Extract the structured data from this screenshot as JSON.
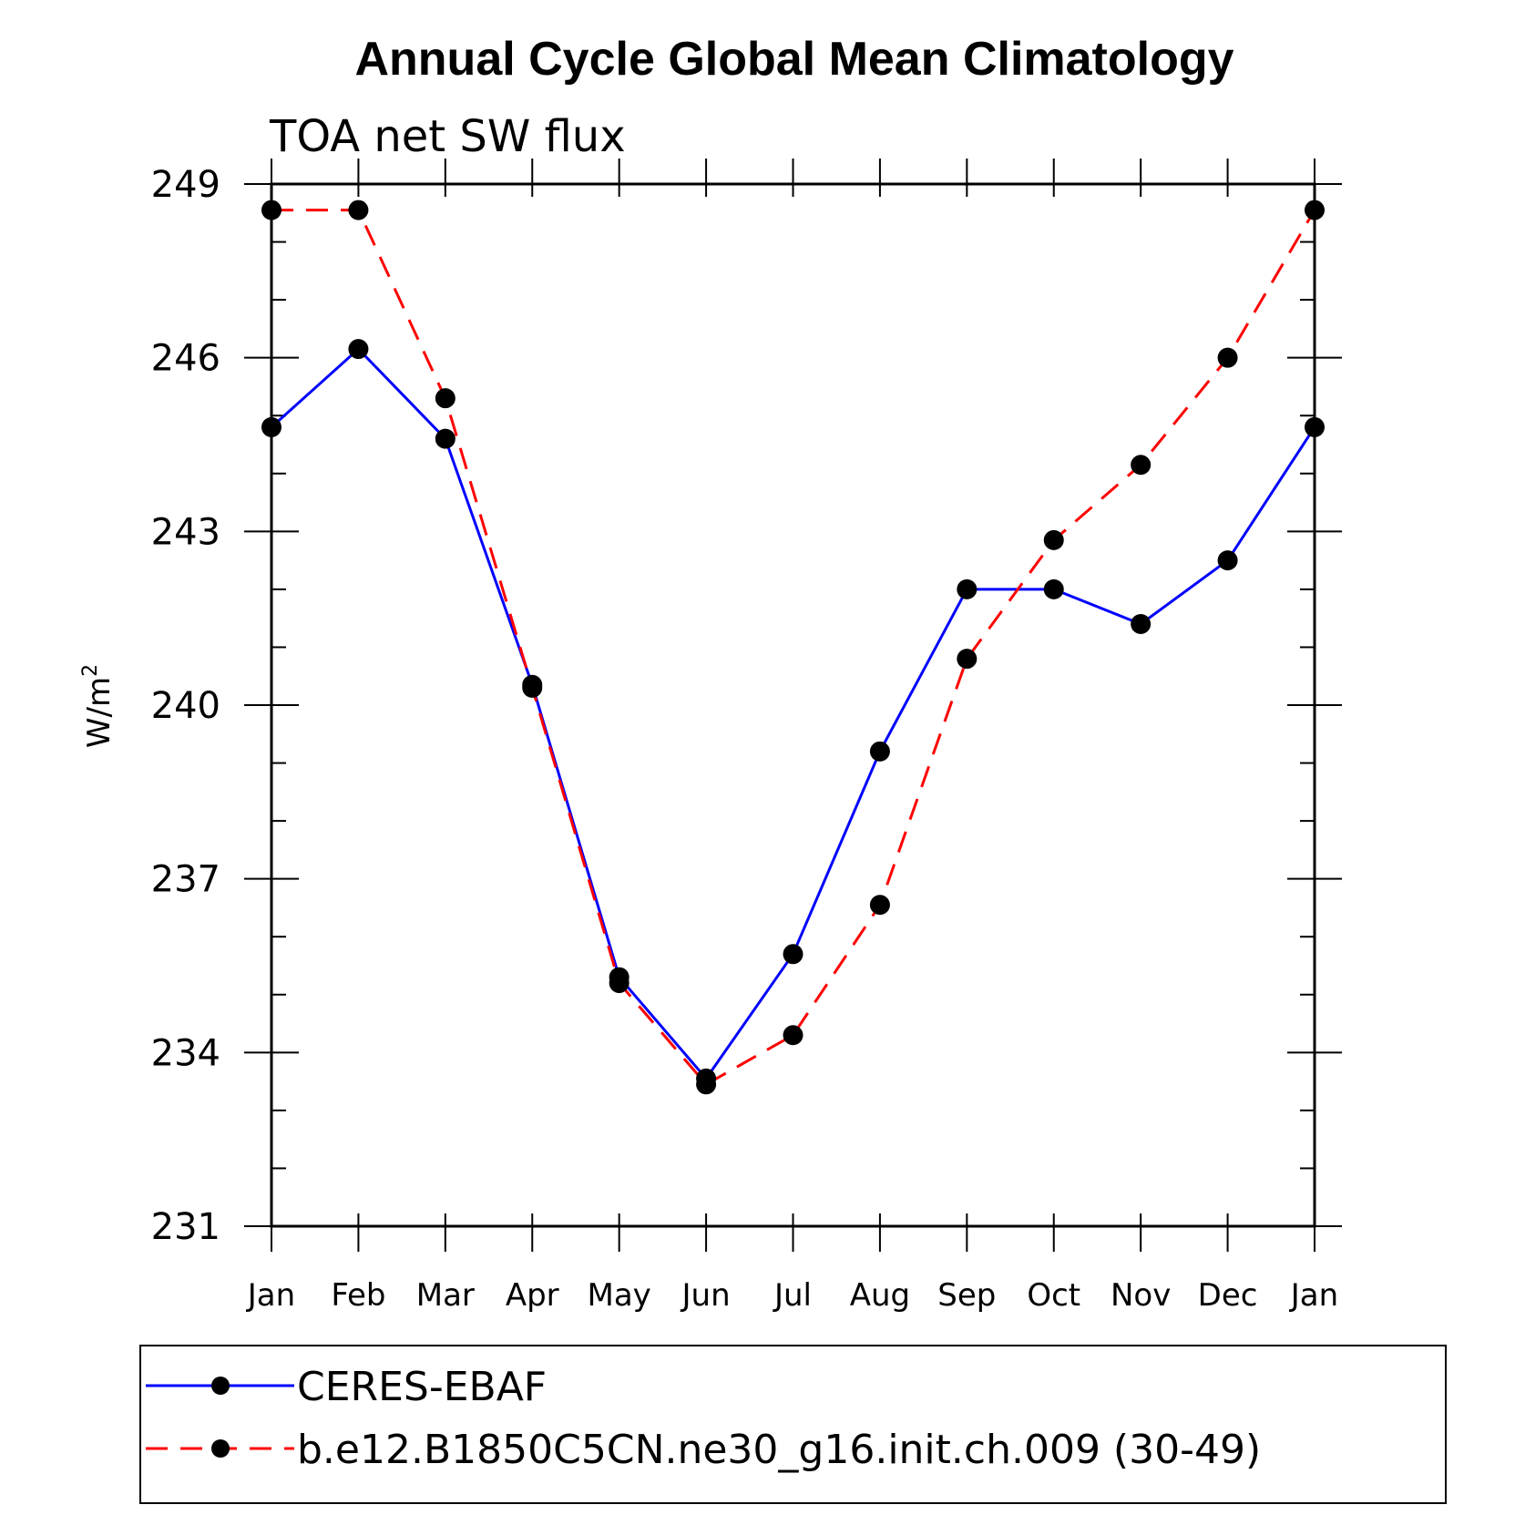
{
  "chart_data": {
    "type": "line",
    "title": "Annual Cycle Global Mean Climatology",
    "subtitle": "TOA net SW flux",
    "ylabel": "W/m",
    "ylabel_sup": "2",
    "xlabel": "",
    "categories": [
      "Jan",
      "Feb",
      "Mar",
      "Apr",
      "May",
      "Jun",
      "Jul",
      "Aug",
      "Sep",
      "Oct",
      "Nov",
      "Dec",
      "Jan"
    ],
    "yticks": [
      231,
      234,
      237,
      240,
      243,
      246,
      249
    ],
    "ylim": [
      231,
      249
    ],
    "series": [
      {
        "name": "CERES-EBAF",
        "color": "#0000ff",
        "style": "solid",
        "marker": "circle",
        "values": [
          244.8,
          246.15,
          244.6,
          240.35,
          235.3,
          233.55,
          235.7,
          239.2,
          242.0,
          242.0,
          241.4,
          242.5,
          244.8
        ]
      },
      {
        "name": "b.e12.B1850C5CN.ne30_g16.init.ch.009 (30-49)",
        "color": "#ff0000",
        "style": "dashed",
        "marker": "circle",
        "values": [
          248.55,
          248.55,
          245.3,
          240.3,
          235.2,
          233.45,
          234.3,
          236.55,
          240.8,
          242.85,
          244.15,
          246.0,
          248.55
        ]
      }
    ],
    "grid": false,
    "legend_position": "bottom"
  }
}
